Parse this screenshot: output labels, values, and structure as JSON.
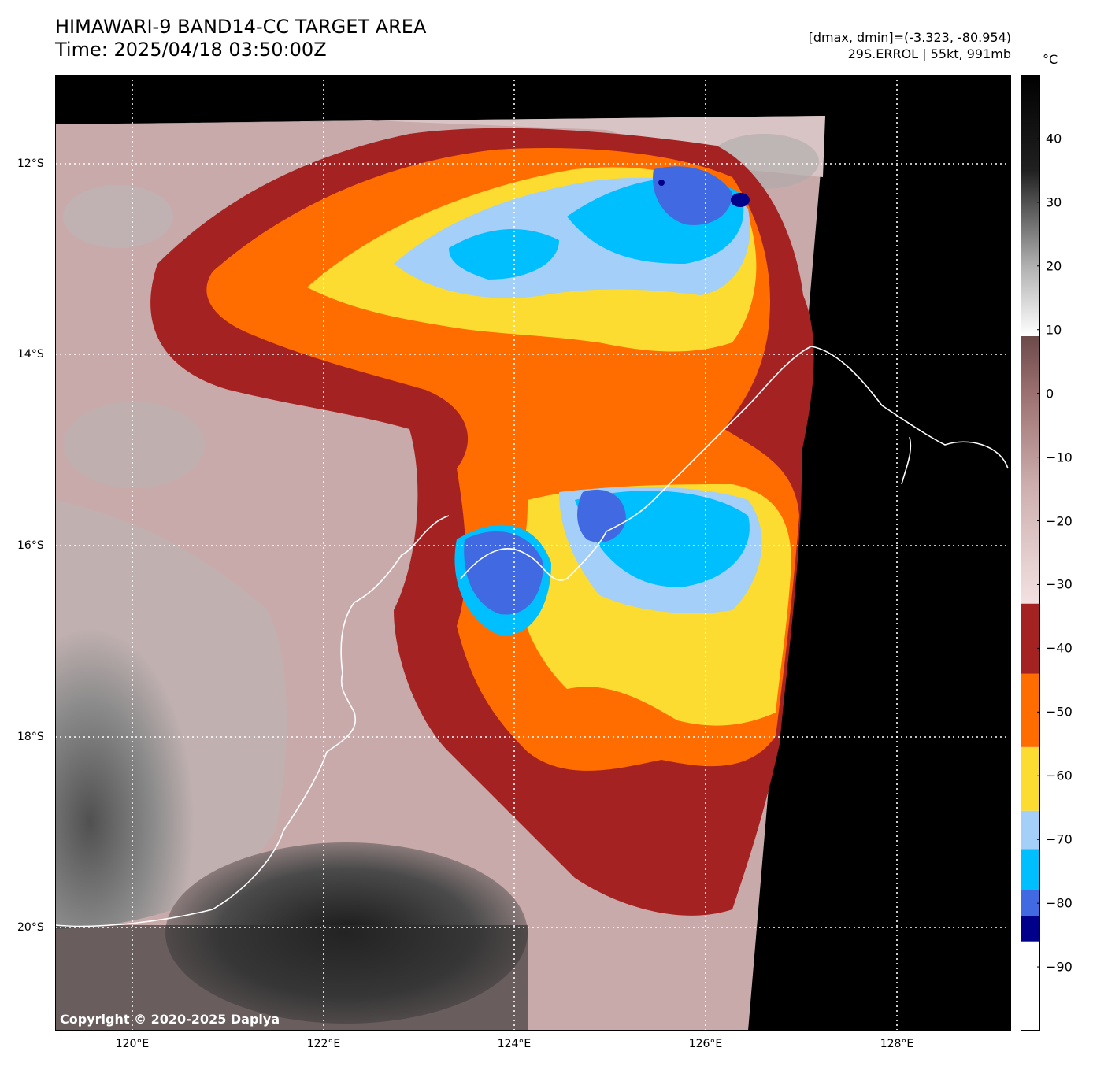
{
  "header": {
    "title_line1": "HIMAWARI-9 BAND14-CC TARGET AREA",
    "title_line2": "Time: 2025/04/18 03:50:00Z",
    "range_text": "[dmax, dmin]=(-3.323, -80.954)",
    "storm_text": "29S.ERROL | 55kt, 991mb"
  },
  "map": {
    "lon_labels": [
      "120°E",
      "122°E",
      "124°E",
      "126°E",
      "128°E"
    ],
    "lat_labels": [
      "12°S",
      "14°S",
      "16°S",
      "18°S",
      "20°S"
    ],
    "lon_range": [
      119.2,
      129.2
    ],
    "lat_range": [
      -11.2,
      -21.2
    ],
    "copyright": "Copyright © 2020-2025 Dapiya",
    "gridline_style": "dotted white",
    "coastline_color": "#ffffff",
    "no_data_color": "#000000"
  },
  "colorbar": {
    "unit": "°C",
    "range": [
      -100,
      50
    ],
    "tick_labels": [
      "40",
      "30",
      "20",
      "10",
      "0",
      "−10",
      "−20",
      "−30",
      "−40",
      "−50",
      "−60",
      "−70",
      "−80",
      "−90"
    ],
    "tick_values": [
      40,
      30,
      20,
      10,
      0,
      -10,
      -20,
      -30,
      -40,
      -50,
      -60,
      -70,
      -80,
      -90
    ],
    "bands": [
      {
        "from": -100,
        "to": -86,
        "color": "#ffffff"
      },
      {
        "from": -86,
        "to": -82,
        "color": "#00008b"
      },
      {
        "from": -82,
        "to": -78,
        "color": "#4169e1"
      },
      {
        "from": -78,
        "to": -71.5,
        "color": "#00bfff"
      },
      {
        "from": -71.5,
        "to": -65.5,
        "color": "#a4cff8"
      },
      {
        "from": -65.5,
        "to": -55.5,
        "color": "#fcdc30"
      },
      {
        "from": -55.5,
        "to": -44,
        "color": "#ff6d00"
      },
      {
        "from": -44,
        "to": -33,
        "color": "#a52222"
      }
    ],
    "gradient_stops": [
      {
        "value": -33,
        "color": "#f3e1e1"
      },
      {
        "value": -15,
        "color": "#cfb0b0"
      },
      {
        "value": 0,
        "color": "#9c7070"
      },
      {
        "value": 9,
        "color": "#6c4a4a"
      },
      {
        "value": 9.01,
        "color": "#ffffff"
      },
      {
        "value": 20,
        "color": "#b0b0b0"
      },
      {
        "value": 35,
        "color": "#202020"
      },
      {
        "value": 50,
        "color": "#000000"
      }
    ]
  }
}
